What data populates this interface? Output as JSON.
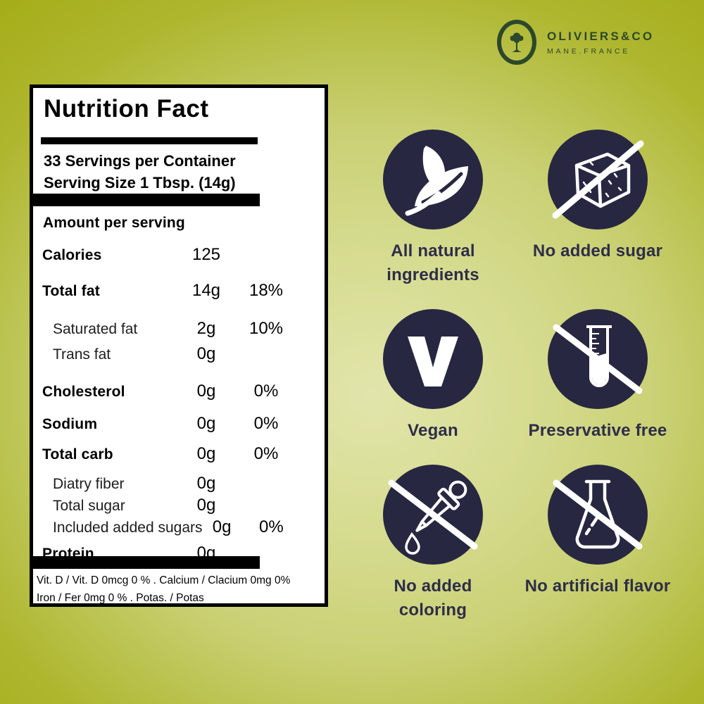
{
  "logo": {
    "brand": "OLIVIERS&CO",
    "sub": "MANE.FRANCE",
    "monogram": "O"
  },
  "label": {
    "title": "Nutrition Fact",
    "servings_line1": "33 Servings per Container",
    "servings_line2": "Serving Size 1 Tbsp. (14g)",
    "amount_heading": "Amount per serving",
    "rows": [
      {
        "name": "Calories",
        "value": "125",
        "pct": "",
        "bold": true,
        "indent": false
      },
      {
        "name": "Total fat",
        "value": "14g",
        "pct": "18%",
        "bold": true,
        "indent": false
      },
      {
        "name": "Saturated fat",
        "value": "2g",
        "pct": "10%",
        "bold": false,
        "indent": true
      },
      {
        "name": "Trans fat",
        "value": "0g",
        "pct": "",
        "bold": false,
        "indent": true
      },
      {
        "name": "Cholesterol",
        "value": "0g",
        "pct": "0%",
        "bold": true,
        "indent": false
      },
      {
        "name": "Sodium",
        "value": "0g",
        "pct": "0%",
        "bold": true,
        "indent": false
      },
      {
        "name": "Total carb",
        "value": "0g",
        "pct": "0%",
        "bold": true,
        "indent": false
      },
      {
        "name": "Diatry fiber",
        "value": "0g",
        "pct": "",
        "bold": false,
        "indent": true
      },
      {
        "name": "Total sugar",
        "value": "0g",
        "pct": "",
        "bold": false,
        "indent": true
      },
      {
        "name": "Included added sugars",
        "value": "0g",
        "pct": "0%",
        "bold": false,
        "indent": true
      },
      {
        "name": "Protein",
        "value": "0g",
        "pct": "",
        "bold": true,
        "indent": false
      }
    ],
    "footnote_line1": "Vit. D / Vit. D 0mcg 0 % . Calcium / Clacium 0mg 0%",
    "footnote_line2": "Iron / Fer 0mg 0 % . Potas. / Potas"
  },
  "badges": {
    "items": [
      {
        "icon": "leaf-icon",
        "label": "All natural ingredients"
      },
      {
        "icon": "no-sugar-cube-icon",
        "label": "No added sugar"
      },
      {
        "icon": "vegan-v-icon",
        "label": "Vegan"
      },
      {
        "icon": "no-preservative-tube-icon",
        "label": "Preservative free"
      },
      {
        "icon": "no-coloring-dropper-icon",
        "label": "No added coloring"
      },
      {
        "icon": "no-artificial-flask-icon",
        "label": "No artificial flavor"
      }
    ]
  },
  "colors": {
    "background_olive": "#9fa90c",
    "background_light": "#e2e5ab",
    "badge_circle": "#272742",
    "badge_text": "#2e2d49",
    "logo_green": "#2c482a",
    "label_background": "#ffffff",
    "label_text": "#000000"
  }
}
